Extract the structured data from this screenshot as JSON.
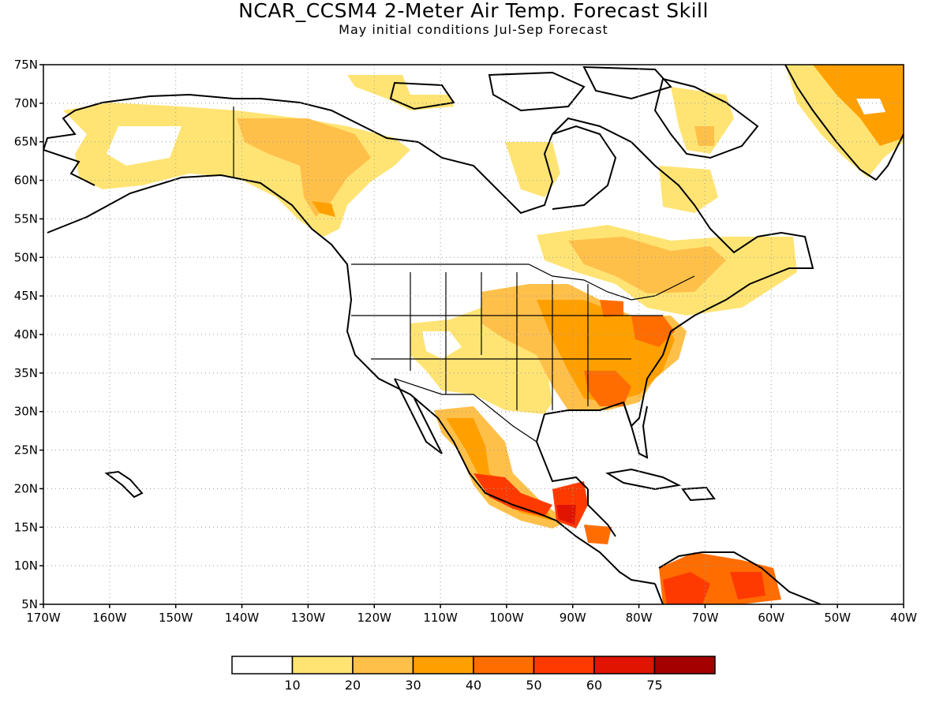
{
  "title": "NCAR_CCSM4 2-Meter Air Temp. Forecast Skill",
  "subtitle": "May initial conditions  Jul-Sep Forecast",
  "map": {
    "lon_range": [
      -170,
      -40
    ],
    "lat_range": [
      5,
      75
    ],
    "lat_ticks": [
      "75N",
      "70N",
      "65N",
      "60N",
      "55N",
      "50N",
      "45N",
      "40N",
      "35N",
      "30N",
      "25N",
      "20N",
      "15N",
      "10N",
      "5N"
    ],
    "lon_ticks": [
      "170W",
      "160W",
      "150W",
      "140W",
      "130W",
      "120W",
      "110W",
      "100W",
      "90W",
      "80W",
      "70W",
      "60W",
      "50W",
      "40W"
    ],
    "gridlines": "dotted"
  },
  "legend": {
    "bins": [
      {
        "color": "#ffffff"
      },
      {
        "color": "#ffe474"
      },
      {
        "color": "#ffc04a"
      },
      {
        "color": "#ffa000"
      },
      {
        "color": "#ff6d00"
      },
      {
        "color": "#ff3a00"
      },
      {
        "color": "#e01400"
      },
      {
        "color": "#a50000"
      }
    ],
    "labels": [
      "10",
      "20",
      "30",
      "40",
      "50",
      "60",
      "75"
    ]
  },
  "colors": {
    "land_outline": "#000000",
    "grid": "#9a9a9a"
  }
}
